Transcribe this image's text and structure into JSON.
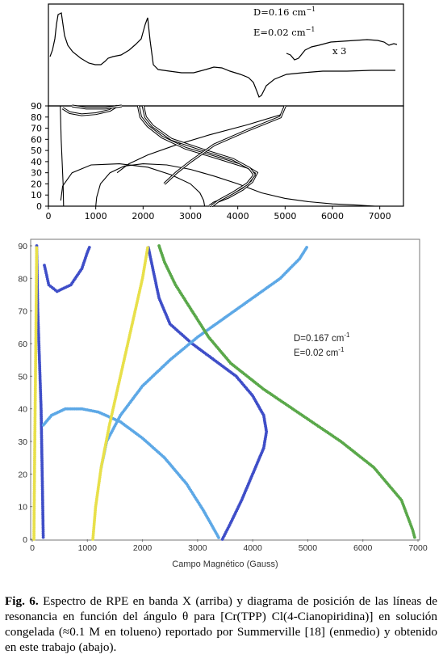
{
  "figure_top": {
    "annotations": {
      "d": "D=0.16 cm",
      "d_sup": "−1",
      "e": "E=0.02 cm",
      "e_sup": "−1",
      "mult": "x 3"
    },
    "chart_data": {
      "type": "line",
      "xlim": [
        0,
        7500
      ],
      "ylim": [
        0,
        90
      ],
      "x_ticks": [
        "0",
        "1000",
        "2000",
        "3000",
        "4000",
        "5000",
        "6000",
        "7000"
      ],
      "y_ticks": [
        "0",
        "10",
        "20",
        "30",
        "40",
        "50",
        "60",
        "70",
        "80",
        "90"
      ],
      "series": [
        {
          "style": "single",
          "points": [
            [
              250,
              90
            ],
            [
              270,
              60
            ],
            [
              290,
              40
            ],
            [
              310,
              20
            ],
            [
              320,
              0
            ]
          ]
        },
        {
          "style": "single",
          "points": [
            [
              1000,
              0
            ],
            [
              1020,
              8
            ],
            [
              1100,
              20
            ],
            [
              1300,
              30
            ],
            [
              1600,
              36
            ],
            [
              2000,
              38
            ],
            [
              2500,
              37
            ],
            [
              3000,
              33
            ],
            [
              3500,
              27
            ],
            [
              4000,
              20
            ],
            [
              4500,
              12
            ],
            [
              5000,
              7
            ],
            [
              5500,
              4
            ],
            [
              6000,
              2
            ],
            [
              6500,
              1
            ],
            [
              6900,
              0
            ]
          ]
        },
        {
          "style": "single",
          "points": [
            [
              3300,
              0
            ],
            [
              3280,
              5
            ],
            [
              3200,
              12
            ],
            [
              3000,
              20
            ],
            [
              2600,
              28
            ],
            [
              2100,
              35
            ],
            [
              1500,
              38
            ],
            [
              900,
              37
            ],
            [
              500,
              30
            ],
            [
              300,
              18
            ],
            [
              260,
              5
            ]
          ]
        },
        {
          "style": "single",
          "points": [
            [
              1450,
              30
            ],
            [
              1700,
              38
            ],
            [
              2100,
              46
            ],
            [
              2700,
              55
            ],
            [
              3400,
              64
            ],
            [
              4200,
              73
            ],
            [
              4900,
              82
            ],
            [
              5000,
              90
            ]
          ]
        },
        {
          "style": "double",
          "points": [
            [
              300,
              88
            ],
            [
              450,
              84
            ],
            [
              700,
              82
            ],
            [
              1000,
              83
            ],
            [
              1300,
              86
            ],
            [
              1450,
              90
            ]
          ]
        },
        {
          "style": "double",
          "points": [
            [
              500,
              90
            ],
            [
              800,
              88
            ],
            [
              1200,
              88
            ],
            [
              1550,
              90
            ]
          ]
        },
        {
          "style": "double",
          "points": [
            [
              1900,
              90
            ],
            [
              1950,
              80
            ],
            [
              2100,
              72
            ],
            [
              2400,
              62
            ],
            [
              2900,
              52
            ],
            [
              3600,
              43
            ],
            [
              4200,
              35
            ],
            [
              4400,
              30
            ],
            [
              4300,
              22
            ],
            [
              4100,
              15
            ],
            [
              3800,
              8
            ],
            [
              3500,
              3
            ],
            [
              3400,
              0
            ]
          ]
        },
        {
          "style": "double",
          "points": [
            [
              2000,
              90
            ],
            [
              2050,
              80
            ],
            [
              2200,
              72
            ],
            [
              2600,
              60
            ],
            [
              3300,
              50
            ],
            [
              3900,
              42
            ],
            [
              4250,
              34
            ],
            [
              4350,
              28
            ],
            [
              4200,
              20
            ],
            [
              3900,
              12
            ],
            [
              3600,
              5
            ],
            [
              3450,
              0
            ]
          ]
        },
        {
          "style": "double",
          "points": [
            [
              2450,
              20
            ],
            [
              2700,
              30
            ],
            [
              3000,
              40
            ],
            [
              3500,
              55
            ],
            [
              4200,
              68
            ],
            [
              4900,
              80
            ],
            [
              5000,
              90
            ]
          ]
        }
      ]
    }
  },
  "figure_bottom": {
    "annotations": {
      "d": "D=0.167 cm",
      "d_sup": "-1",
      "e": "E=0.02 cm",
      "e_sup": "-1"
    },
    "chart_data": {
      "type": "scatter",
      "xlabel": "Campo Magnético (Gauss)",
      "xlim": [
        0,
        7000
      ],
      "ylim": [
        0,
        90
      ],
      "x_ticks": [
        "0",
        "1000",
        "2000",
        "3000",
        "4000",
        "5000",
        "6000",
        "7000"
      ],
      "y_ticks": [
        "0",
        "10",
        "20",
        "30",
        "40",
        "50",
        "60",
        "70",
        "80",
        "90"
      ],
      "series": [
        {
          "color": "#3f4ec8",
          "points": [
            [
              80,
              90
            ],
            [
              90,
              80
            ],
            [
              100,
              70
            ],
            [
              120,
              60
            ],
            [
              140,
              50
            ],
            [
              160,
              40
            ],
            [
              170,
              30
            ],
            [
              180,
              20
            ],
            [
              190,
              10
            ],
            [
              200,
              0
            ]
          ]
        },
        {
          "color": "#3f4ec8",
          "points": [
            [
              220,
              84
            ],
            [
              300,
              78
            ],
            [
              450,
              76
            ],
            [
              700,
              78
            ],
            [
              900,
              83
            ],
            [
              1000,
              88
            ],
            [
              1050,
              90
            ]
          ]
        },
        {
          "color": "#5da8e6",
          "points": [
            [
              200,
              35
            ],
            [
              350,
              38
            ],
            [
              600,
              40
            ],
            [
              900,
              40
            ],
            [
              1200,
              39
            ],
            [
              1600,
              36
            ],
            [
              2000,
              31
            ],
            [
              2400,
              25
            ],
            [
              2800,
              17
            ],
            [
              3100,
              9
            ],
            [
              3300,
              3
            ],
            [
              3400,
              0
            ]
          ]
        },
        {
          "color": "#3f4ec8",
          "points": [
            [
              3450,
              0
            ],
            [
              3600,
              5
            ],
            [
              3800,
              12
            ],
            [
              4000,
              20
            ],
            [
              4200,
              28
            ],
            [
              4250,
              33
            ],
            [
              4200,
              38
            ],
            [
              4000,
              44
            ],
            [
              3700,
              50
            ],
            [
              3300,
              55
            ],
            [
              2900,
              60
            ],
            [
              2500,
              66
            ],
            [
              2300,
              74
            ],
            [
              2200,
              82
            ],
            [
              2100,
              90
            ]
          ]
        },
        {
          "color": "#5da8e6",
          "points": [
            [
              1250,
              22
            ],
            [
              1350,
              30
            ],
            [
              1600,
              38
            ],
            [
              2000,
              47
            ],
            [
              2500,
              55
            ],
            [
              3000,
              62
            ],
            [
              3500,
              68
            ],
            [
              4000,
              74
            ],
            [
              4500,
              80
            ],
            [
              4850,
              86
            ],
            [
              5000,
              90
            ]
          ]
        },
        {
          "color": "#5aa84a",
          "points": [
            [
              2300,
              90
            ],
            [
              2400,
              85
            ],
            [
              2600,
              78
            ],
            [
              2900,
              70
            ],
            [
              3200,
              62
            ],
            [
              3600,
              54
            ],
            [
              4200,
              46
            ],
            [
              4900,
              38
            ],
            [
              5600,
              30
            ],
            [
              6200,
              22
            ],
            [
              6700,
              12
            ],
            [
              6900,
              3
            ],
            [
              6950,
              0
            ]
          ]
        },
        {
          "color": "#e8e04a",
          "points": [
            [
              1100,
              0
            ],
            [
              1150,
              10
            ],
            [
              1250,
              22
            ],
            [
              1400,
              35
            ],
            [
              1600,
              50
            ],
            [
              1800,
              65
            ],
            [
              2000,
              80
            ],
            [
              2100,
              90
            ]
          ]
        },
        {
          "color": "#e8e04a",
          "points": [
            [
              30,
              0
            ],
            [
              40,
              20
            ],
            [
              55,
              45
            ],
            [
              70,
              70
            ],
            [
              80,
              90
            ]
          ]
        }
      ]
    }
  },
  "caption": {
    "label": "Fig. 6.",
    "text": " Espectro de RPE en banda X (arriba) y diagrama de posición de las líneas de resonancia en función del ángulo θ para [Cr(TPP) Cl(4-Cianopiridina)] en solución congelada (≈0.1 M en tolueno) reportado por Summerville [18] (enmedio) y obtenido en este trabajo (abajo)."
  }
}
